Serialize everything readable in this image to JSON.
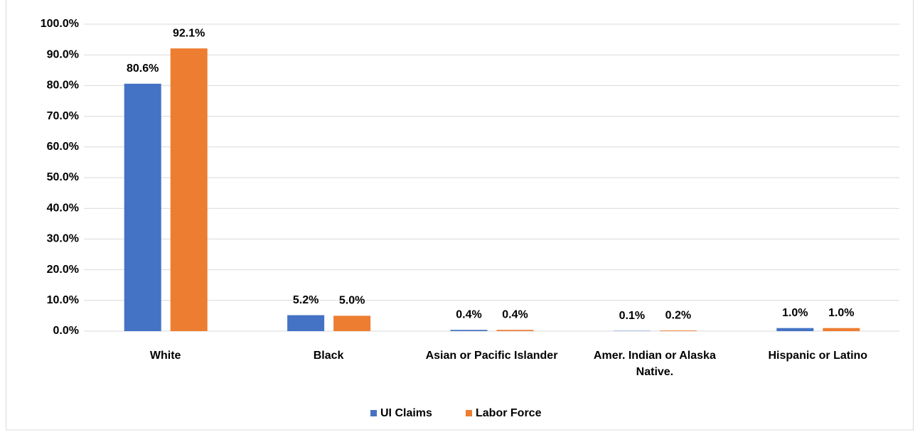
{
  "chart_data": {
    "type": "bar",
    "categories": [
      "White",
      "Black",
      "Asian or Pacific Islander",
      "Amer. Indian or Alaska Native.",
      "Hispanic or Latino"
    ],
    "series": [
      {
        "name": "UI Claims",
        "color": "#4472c4",
        "values": [
          80.6,
          5.2,
          0.4,
          0.1,
          1.0
        ],
        "value_labels": [
          "80.6%",
          "5.2%",
          "0.4%",
          "0.1%",
          "1.0%"
        ]
      },
      {
        "name": "Labor Force",
        "color": "#ed7d31",
        "values": [
          92.1,
          5.0,
          0.4,
          0.2,
          1.0
        ],
        "value_labels": [
          "92.1%",
          "5.0%",
          "0.4%",
          "0.2%",
          "1.0%"
        ]
      }
    ],
    "ylim": [
      0,
      100
    ],
    "yticks": [
      {
        "value": 0,
        "label": "0.0%"
      },
      {
        "value": 10,
        "label": "10.0%"
      },
      {
        "value": 20,
        "label": "20.0%"
      },
      {
        "value": 30,
        "label": "30.0%"
      },
      {
        "value": 40,
        "label": "40.0%"
      },
      {
        "value": 50,
        "label": "50.0%"
      },
      {
        "value": 60,
        "label": "60.0%"
      },
      {
        "value": 70,
        "label": "70.0%"
      },
      {
        "value": 80,
        "label": "80.0%"
      },
      {
        "value": 90,
        "label": "90.0%"
      },
      {
        "value": 100,
        "label": "100.0%"
      }
    ],
    "grid": true,
    "legend": "bottom"
  }
}
